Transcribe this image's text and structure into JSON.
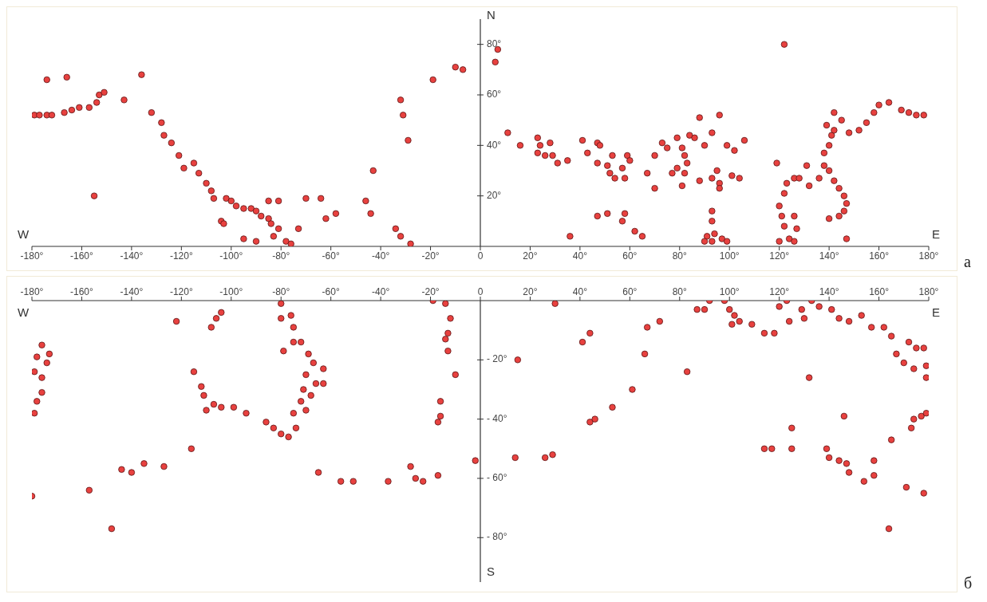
{
  "chart_data": [
    {
      "type": "scatter",
      "color": "#e8413f",
      "marker": "circle",
      "annotations": [
        "W",
        "E",
        "N",
        "а"
      ],
      "xlim": [
        -180,
        180
      ],
      "ylim": [
        0,
        90
      ],
      "xticks": [
        {
          "value": -180,
          "label": "-180°"
        },
        {
          "value": -160,
          "label": "-160°"
        },
        {
          "value": -140,
          "label": "-140°"
        },
        {
          "value": -120,
          "label": "-120°"
        },
        {
          "value": -100,
          "label": "-100°"
        },
        {
          "value": -80,
          "label": "-80°"
        },
        {
          "value": -60,
          "label": "-60°"
        },
        {
          "value": -40,
          "label": "-40°"
        },
        {
          "value": -20,
          "label": "-20°"
        },
        0,
        {
          "value": 20,
          "label": "20°"
        },
        {
          "value": 40,
          "label": "40°"
        },
        {
          "value": 60,
          "label": "60°"
        },
        {
          "value": 80,
          "label": "80°"
        },
        {
          "value": 100,
          "label": "100°"
        },
        {
          "value": 120,
          "label": "120°"
        },
        {
          "value": 140,
          "label": "140°"
        },
        {
          "value": 160,
          "label": "160°"
        },
        {
          "value": 180,
          "label": "180°"
        }
      ],
      "yticks": [
        {
          "value": 20,
          "label": "20°"
        },
        {
          "value": 40,
          "label": "40°"
        },
        {
          "value": 60,
          "label": "60°"
        },
        {
          "value": 80,
          "label": "80°"
        }
      ],
      "x": [
        -174,
        -166,
        -136,
        -179,
        -177,
        -174,
        -172,
        -167,
        -164,
        -161,
        -157,
        -154,
        -153,
        -151,
        -143,
        -155,
        -132,
        -128,
        -127,
        -124,
        -121,
        -119,
        -115,
        -113,
        -110,
        -108,
        -107,
        -102,
        -100,
        -98,
        -95,
        -92,
        -90,
        -88,
        -85,
        -84,
        -81,
        -83,
        -78,
        -76,
        -85,
        -81,
        -104,
        -103,
        -95,
        -90,
        -73,
        -70,
        -64,
        -62,
        -58,
        -46,
        -44,
        -43,
        -34,
        -32,
        -28,
        -32,
        -31,
        -29,
        -19,
        -10,
        -7,
        6,
        7,
        11,
        16,
        23,
        24,
        23,
        26,
        28,
        29,
        31,
        35,
        36,
        41,
        43,
        47,
        48,
        47,
        51,
        52,
        53,
        54,
        57,
        58,
        59,
        60,
        47,
        51,
        58,
        57,
        62,
        65,
        67,
        70,
        70,
        73,
        75,
        77,
        79,
        79,
        81,
        82,
        84,
        86,
        83,
        82,
        81,
        88,
        90,
        88,
        93,
        96,
        93,
        95,
        96,
        96,
        99,
        101,
        102,
        104,
        106,
        93,
        93,
        91,
        94,
        97,
        93,
        90,
        99,
        122,
        119,
        120,
        121,
        122,
        124,
        126,
        127,
        126,
        120,
        122,
        123,
        126,
        128,
        131,
        132,
        136,
        138,
        138,
        140,
        142,
        144,
        146,
        147,
        146,
        144,
        140,
        147,
        139,
        140,
        141,
        142,
        142,
        145,
        148,
        152,
        155,
        158,
        160,
        164,
        169,
        172,
        175,
        178
      ],
      "values": [
        66,
        67,
        68,
        52,
        52,
        52,
        52,
        53,
        54,
        55,
        55,
        57,
        60,
        61,
        58,
        20,
        53,
        49,
        44,
        41,
        36,
        31,
        33,
        29,
        25,
        22,
        19,
        19,
        18,
        16,
        15,
        15,
        14,
        12,
        11,
        9,
        7,
        4,
        2,
        1,
        18,
        18,
        10,
        9,
        3,
        2,
        7,
        19,
        19,
        11,
        13,
        18,
        13,
        30,
        7,
        4,
        1,
        58,
        52,
        42,
        66,
        71,
        70,
        73,
        78,
        45,
        40,
        43,
        40,
        37,
        36,
        41,
        36,
        33,
        34,
        4,
        42,
        37,
        41,
        40,
        33,
        32,
        29,
        36,
        27,
        31,
        27,
        36,
        34,
        12,
        13,
        13,
        10,
        6,
        4,
        29,
        36,
        23,
        41,
        39,
        29,
        31,
        43,
        39,
        36,
        44,
        43,
        33,
        29,
        24,
        51,
        40,
        26,
        45,
        52,
        27,
        30,
        25,
        23,
        40,
        28,
        38,
        27,
        42,
        14,
        10,
        4,
        5,
        3,
        2,
        2,
        2,
        80,
        33,
        16,
        12,
        8,
        3,
        2,
        7,
        12,
        2,
        21,
        25,
        27,
        27,
        32,
        24,
        27,
        37,
        32,
        30,
        26,
        23,
        20,
        17,
        14,
        12,
        11,
        3,
        48,
        40,
        44,
        46,
        53,
        50,
        45,
        46,
        49,
        53,
        56,
        57,
        54,
        53,
        52,
        52
      ]
    },
    {
      "type": "scatter",
      "color": "#e8413f",
      "marker": "circle",
      "annotations": [
        "W",
        "E",
        "S",
        "б"
      ],
      "xlim": [
        -180,
        180
      ],
      "ylim": [
        -95,
        0
      ],
      "xticks": [
        {
          "value": -180,
          "label": "-180°"
        },
        {
          "value": -160,
          "label": "-160°"
        },
        {
          "value": -140,
          "label": "-140°"
        },
        {
          "value": -120,
          "label": "-120°"
        },
        {
          "value": -100,
          "label": "-100°"
        },
        {
          "value": -80,
          "label": "-80°"
        },
        {
          "value": -60,
          "label": "-60°"
        },
        {
          "value": -40,
          "label": "-40°"
        },
        {
          "value": -20,
          "label": "-20°"
        },
        0,
        {
          "value": 20,
          "label": "20°"
        },
        {
          "value": 40,
          "label": "40°"
        },
        {
          "value": 60,
          "label": "60°"
        },
        {
          "value": 80,
          "label": "80°"
        },
        {
          "value": 100,
          "label": "100°"
        },
        {
          "value": 120,
          "label": "120°"
        },
        {
          "value": 140,
          "label": "140°"
        },
        {
          "value": 160,
          "label": "160°"
        },
        {
          "value": 180,
          "label": "180°"
        }
      ],
      "yticks": [
        {
          "value": -20,
          "label": "- 20°"
        },
        {
          "value": -40,
          "label": "- 40°"
        },
        {
          "value": -60,
          "label": "- 60°"
        },
        {
          "value": -80,
          "label": "- 80°"
        }
      ],
      "x": [
        -176,
        -178,
        -173,
        -179,
        -176,
        -176,
        -178,
        -179,
        -174,
        -180,
        -157,
        -148,
        -144,
        -140,
        -135,
        -127,
        -116,
        -122,
        -108,
        -106,
        -104,
        -115,
        -112,
        -111,
        -110,
        -107,
        -104,
        -99,
        -94,
        -86,
        -83,
        -80,
        -77,
        -74,
        -80,
        -80,
        -76,
        -75,
        -79,
        -75,
        -72,
        -69,
        -67,
        -63,
        -70,
        -63,
        -66,
        -71,
        -72,
        -68,
        -75,
        -70,
        -65,
        -56,
        -51,
        -37,
        -28,
        -26,
        -23,
        -17,
        -19,
        -14,
        -12,
        -13,
        -14,
        -13,
        -10,
        -16,
        -16,
        -17,
        -2,
        30,
        15,
        14,
        26,
        29,
        41,
        44,
        44,
        46,
        53,
        61,
        66,
        67,
        72,
        83,
        87,
        90,
        92,
        98,
        100,
        102,
        101,
        104,
        109,
        114,
        118,
        120,
        123,
        124,
        129,
        130,
        133,
        136,
        141,
        144,
        148,
        153,
        157,
        162,
        165,
        167,
        170,
        172,
        175,
        178,
        179,
        179,
        174,
        132,
        146,
        125,
        125,
        114,
        117,
        139,
        140,
        144,
        147,
        148,
        154,
        158,
        158,
        165,
        164,
        171,
        178,
        173,
        174,
        177,
        179
      ],
      "values": [
        -15,
        -19,
        -18,
        -24,
        -26,
        -31,
        -34,
        -38,
        -21,
        -66,
        -64,
        -77,
        -57,
        -58,
        -55,
        -56,
        -50,
        -7,
        -9,
        -6,
        -4,
        -24,
        -29,
        -32,
        -37,
        -35,
        -36,
        -36,
        -38,
        -41,
        -43,
        -45,
        -46,
        -43,
        -1,
        -6,
        -5,
        -9,
        -17,
        -14,
        -14,
        -18,
        -21,
        -23,
        -25,
        -28,
        -28,
        -30,
        -34,
        -32,
        -38,
        -37,
        -58,
        -61,
        -61,
        -61,
        -56,
        -60,
        -61,
        -59,
        0,
        -1,
        -6,
        -11,
        -13,
        -17,
        -25,
        -34,
        -39,
        -41,
        -54,
        -1,
        -20,
        -53,
        -53,
        -52,
        -14,
        -11,
        -41,
        -40,
        -36,
        -30,
        -18,
        -9,
        -7,
        -24,
        -3,
        -3,
        0,
        0,
        -3,
        -5,
        -8,
        -7,
        -8,
        -11,
        -11,
        -2,
        0,
        -7,
        -3,
        -6,
        0,
        -2,
        -3,
        -6,
        -7,
        -5,
        -9,
        -9,
        -12,
        -18,
        -21,
        -14,
        -16,
        -16,
        -22,
        -26,
        -23,
        -26,
        -39,
        -43,
        -50,
        -50,
        -50,
        -50,
        -53,
        -54,
        -55,
        -58,
        -61,
        -59,
        -54,
        -47,
        -77,
        -63,
        -65,
        -43,
        -40,
        -39,
        -38
      ]
    }
  ]
}
